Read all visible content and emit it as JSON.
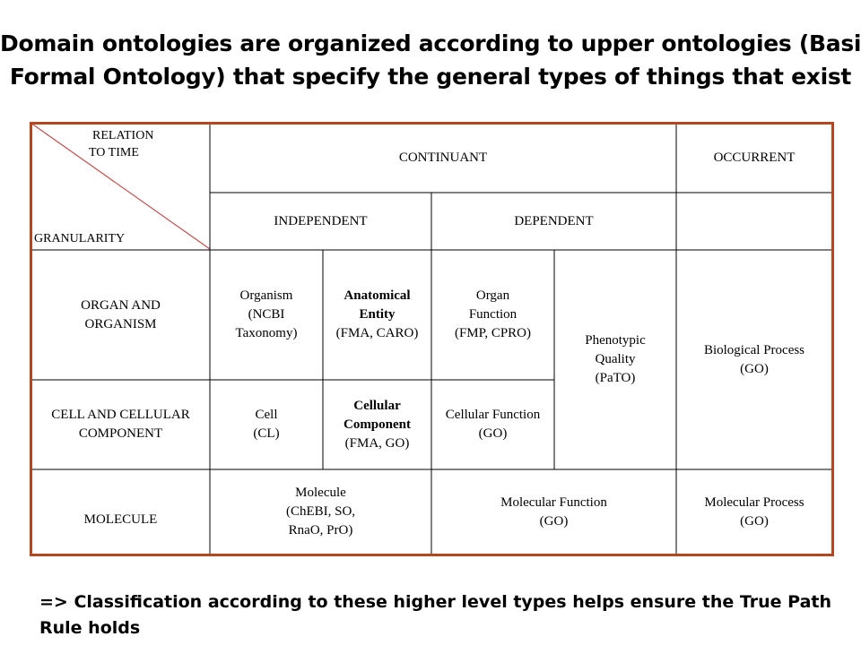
{
  "title": {
    "line1": "Domain ontologies are organized according to upper ontologies (Basic",
    "line2": "Formal Ontology) that specify the general types of things that exist"
  },
  "table": {
    "corner": {
      "relation_line1": "RELATION",
      "relation_line2": "TO TIME",
      "granularity": "GRANULARITY"
    },
    "headers": {
      "continuant": "CONTINUANT",
      "occurrent": "OCCURRENT",
      "independent": "INDEPENDENT",
      "dependent": "DEPENDENT"
    },
    "rows": {
      "organ": {
        "line1": "ORGAN AND",
        "line2": "ORGANISM"
      },
      "cell": {
        "line1": "CELL AND CELLULAR",
        "line2": "COMPONENT"
      },
      "molecule": "MOLECULE"
    },
    "cells": {
      "organism": [
        "Organism",
        "(NCBI",
        "Taxonomy)"
      ],
      "anatomical": [
        "Anatomical",
        "Entity",
        "(FMA, CARO)"
      ],
      "organ_function": [
        "Organ",
        "Function",
        "(FMP, CPRO)"
      ],
      "phenotypic": [
        "Phenotypic",
        "Quality",
        "(PaTO)"
      ],
      "bio_process": [
        "Biological Process",
        "(GO)"
      ],
      "cell": [
        "Cell",
        "(CL)"
      ],
      "cellular_component": [
        "Cellular",
        "Component",
        "(FMA, GO)"
      ],
      "cellular_function": [
        "Cellular Function",
        "(GO)"
      ],
      "molecule": [
        "Molecule",
        "(ChEBI, SO,",
        "RnaO, PrO)"
      ],
      "molecular_function": [
        "Molecular Function",
        "(GO)"
      ],
      "molecular_process": [
        "Molecular Process",
        "(GO)"
      ]
    }
  },
  "footer": {
    "line1": "=> Classification according to these higher level types helps ensure the True Path",
    "line2": "Rule holds"
  },
  "colors": {
    "border": "#b5461f",
    "inner_lines": "#000000",
    "diagonal": "#c0504d"
  }
}
